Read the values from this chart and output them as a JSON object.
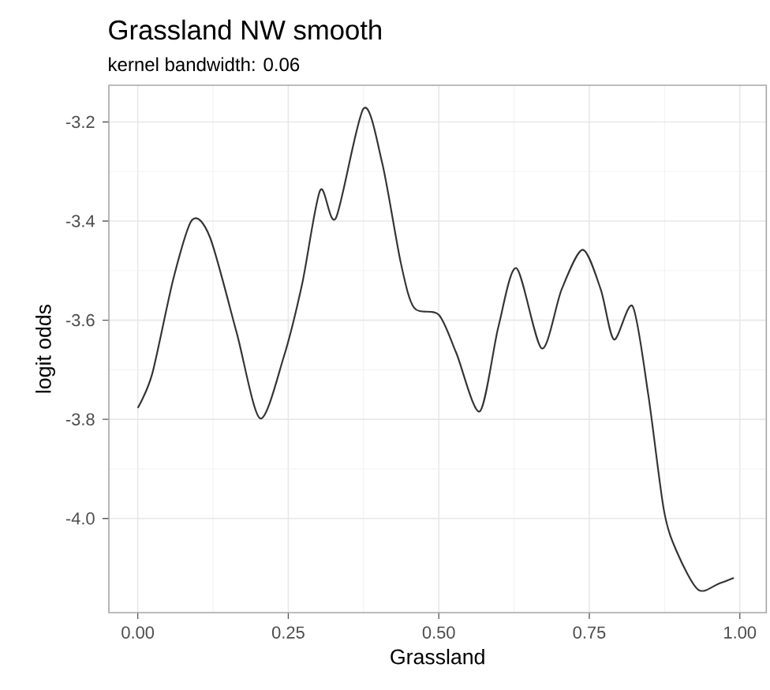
{
  "chart_data": {
    "type": "line",
    "title": "Grassland NW smooth",
    "subtitle": "kernel bandwidth: 0.06",
    "xlabel": "Grassland",
    "ylabel": "logit odds",
    "x": [
      0,
      0.024,
      0.059,
      0.09,
      0.12,
      0.164,
      0.203,
      0.242,
      0.273,
      0.303,
      0.329,
      0.375,
      0.406,
      0.437,
      0.459,
      0.5,
      0.529,
      0.568,
      0.599,
      0.629,
      0.671,
      0.704,
      0.739,
      0.769,
      0.791,
      0.822,
      0.848,
      0.874,
      0.896,
      0.931,
      0.966,
      0.99
    ],
    "series": [
      {
        "color": "#333333",
        "values": [
          -3.777,
          -3.708,
          -3.517,
          -3.398,
          -3.433,
          -3.624,
          -3.798,
          -3.676,
          -3.527,
          -3.338,
          -3.394,
          -3.173,
          -3.283,
          -3.485,
          -3.575,
          -3.589,
          -3.666,
          -3.784,
          -3.613,
          -3.495,
          -3.657,
          -3.538,
          -3.458,
          -3.538,
          -3.639,
          -3.572,
          -3.751,
          -3.984,
          -4.069,
          -4.144,
          -4.131,
          -4.12
        ]
      }
    ],
    "xlim": [
      -0.048,
      1.044
    ],
    "ylim": [
      -4.19,
      -3.126
    ],
    "xticks": [
      {
        "value": 0,
        "label": "0.00"
      },
      {
        "value": 0.25,
        "label": "0.25"
      },
      {
        "value": 0.5,
        "label": "0.50"
      },
      {
        "value": 0.75,
        "label": "0.75"
      },
      {
        "value": 1,
        "label": "1.00"
      }
    ],
    "yticks": [
      {
        "value": -4.0,
        "label": "-4.0"
      },
      {
        "value": -3.8,
        "label": "-3.8"
      },
      {
        "value": -3.6,
        "label": "-3.6"
      },
      {
        "value": -3.4,
        "label": "-3.4"
      },
      {
        "value": -3.2,
        "label": "-3.2"
      }
    ],
    "grid": true,
    "marker": "none",
    "line_style": "solid"
  }
}
